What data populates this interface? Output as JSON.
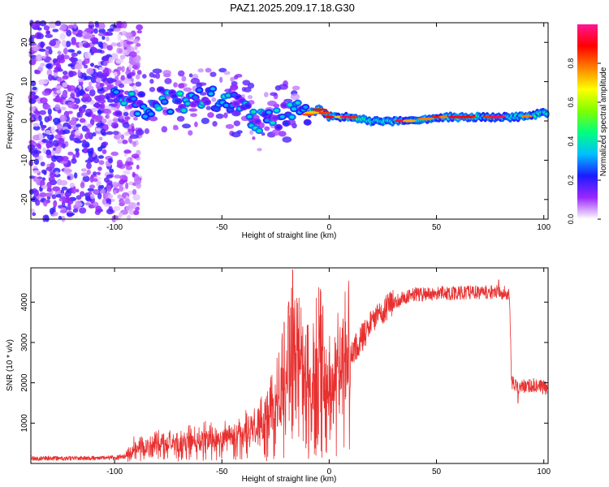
{
  "title": "PAZ1.2025.209.17.18.G30",
  "chart_data": [
    {
      "type": "heatmap",
      "xlabel": "Height of straight line (km)",
      "ylabel": "Frequency (Hz)",
      "xlim": [
        -139,
        102
      ],
      "ylim": [
        -25,
        25
      ],
      "xticks": [
        -100,
        -50,
        0,
        50,
        100
      ],
      "yticks": [
        -20,
        -10,
        0,
        10,
        20
      ],
      "colorbar": {
        "label": "Normalized spectral amplitude",
        "range": [
          0,
          1
        ],
        "ticks": [
          0.0,
          0.2,
          0.4,
          0.6,
          0.8
        ],
        "colors": [
          "#ffffff",
          "#9b27ff",
          "#1c1cff",
          "#00bfff",
          "#00ff80",
          "#7fff00",
          "#ffff00",
          "#ff8000",
          "#ff0000",
          "#ff1493"
        ]
      },
      "ridge": [
        {
          "x": -100,
          "y": 5
        },
        {
          "x": -92,
          "y": 4
        },
        {
          "x": -85,
          "y": 4
        },
        {
          "x": -78,
          "y": 6
        },
        {
          "x": -70,
          "y": 4
        },
        {
          "x": -62,
          "y": 5
        },
        {
          "x": -55,
          "y": 6
        },
        {
          "x": -48,
          "y": 5
        },
        {
          "x": -42,
          "y": 4
        },
        {
          "x": -35,
          "y": 1
        },
        {
          "x": -30,
          "y": -1
        },
        {
          "x": -24,
          "y": 1
        },
        {
          "x": -18,
          "y": 3
        },
        {
          "x": -12,
          "y": 1
        },
        {
          "x": -5,
          "y": 3
        },
        {
          "x": 0,
          "y": 1
        },
        {
          "x": 10,
          "y": 1
        },
        {
          "x": 20,
          "y": 0
        },
        {
          "x": 30,
          "y": 0
        },
        {
          "x": 40,
          "y": 0
        },
        {
          "x": 50,
          "y": 1
        },
        {
          "x": 60,
          "y": 1
        },
        {
          "x": 70,
          "y": 1
        },
        {
          "x": 80,
          "y": 1
        },
        {
          "x": 90,
          "y": 1
        },
        {
          "x": 100,
          "y": 2
        }
      ]
    },
    {
      "type": "line",
      "xlabel": "Height of straight line (km)",
      "ylabel": "SNR (10 * v/v)",
      "xlim": [
        -139,
        102
      ],
      "ylim": [
        0,
        4850
      ],
      "xticks": [
        -100,
        -50,
        0,
        50,
        100
      ],
      "yticks": [
        1000,
        2000,
        3000,
        4000
      ],
      "color": "#e83030",
      "envelope": [
        {
          "x": -139,
          "y": 120
        },
        {
          "x": -110,
          "y": 130
        },
        {
          "x": -100,
          "y": 140
        },
        {
          "x": -95,
          "y": 180
        },
        {
          "x": -90,
          "y": 400
        },
        {
          "x": -85,
          "y": 380
        },
        {
          "x": -80,
          "y": 450
        },
        {
          "x": -70,
          "y": 480
        },
        {
          "x": -60,
          "y": 540
        },
        {
          "x": -50,
          "y": 620
        },
        {
          "x": -40,
          "y": 720
        },
        {
          "x": -30,
          "y": 950
        },
        {
          "x": -25,
          "y": 1300
        },
        {
          "x": -20,
          "y": 1900
        },
        {
          "x": -16,
          "y": 3000
        },
        {
          "x": -12,
          "y": 2200
        },
        {
          "x": -8,
          "y": 1800
        },
        {
          "x": -4,
          "y": 2500
        },
        {
          "x": 0,
          "y": 1800
        },
        {
          "x": 5,
          "y": 2300
        },
        {
          "x": 10,
          "y": 2700
        },
        {
          "x": 15,
          "y": 3100
        },
        {
          "x": 20,
          "y": 3500
        },
        {
          "x": 25,
          "y": 3800
        },
        {
          "x": 30,
          "y": 4000
        },
        {
          "x": 35,
          "y": 4120
        },
        {
          "x": 40,
          "y": 4180
        },
        {
          "x": 50,
          "y": 4220
        },
        {
          "x": 60,
          "y": 4230
        },
        {
          "x": 70,
          "y": 4240
        },
        {
          "x": 80,
          "y": 4250
        },
        {
          "x": 84,
          "y": 4200
        },
        {
          "x": 85,
          "y": 2000
        },
        {
          "x": 88,
          "y": 1900
        },
        {
          "x": 95,
          "y": 1950
        },
        {
          "x": 102,
          "y": 1850
        }
      ],
      "spikes": [
        {
          "x": -17,
          "y": 4800
        },
        {
          "x": -19,
          "y": 3900
        },
        {
          "x": -21,
          "y": 3500
        },
        {
          "x": -3,
          "y": 3900
        },
        {
          "x": 2,
          "y": 1000
        },
        {
          "x": 88,
          "y": 1500
        },
        {
          "x": 79,
          "y": 4550
        }
      ]
    }
  ]
}
